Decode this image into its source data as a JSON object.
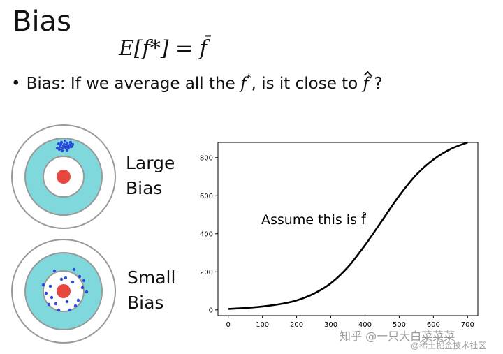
{
  "slide": {
    "title": "Bias",
    "formula": "E[f*] = f̄",
    "bullet_prefix": "Bias: If we average all the ",
    "bullet_middle": ", is it close to ",
    "bullet_suffix": " ?",
    "f_symbol": "f",
    "star": "*"
  },
  "targets": [
    {
      "label_line1": "Large",
      "label_line2": "Bias"
    },
    {
      "label_line1": "Small",
      "label_line2": "Bias"
    }
  ],
  "colors": {
    "ring_outer": "#ffffff",
    "ring_teal": "#7fd8dc",
    "bullseye": "#e8473f",
    "dots": "#2a4bd7",
    "curve": "#000000"
  },
  "chart_data": {
    "type": "line",
    "annotation": "Assume this is f̂",
    "xlim": [
      -30,
      730
    ],
    "ylim": [
      -30,
      880
    ],
    "xticks": [
      0,
      100,
      200,
      300,
      400,
      500,
      600,
      700
    ],
    "yticks": [
      0,
      200,
      400,
      600,
      800
    ],
    "series": [
      {
        "x": [
          0,
          50,
          100,
          150,
          200,
          250,
          300,
          350,
          400,
          450,
          500,
          550,
          600,
          650,
          700
        ],
        "values": [
          5,
          10,
          18,
          30,
          50,
          85,
          140,
          225,
          340,
          470,
          600,
          710,
          790,
          845,
          880
        ]
      }
    ]
  },
  "watermark": {
    "line1": "知乎 @一只大白菜菜菜",
    "line2": "@稀土掘金技术社区"
  }
}
